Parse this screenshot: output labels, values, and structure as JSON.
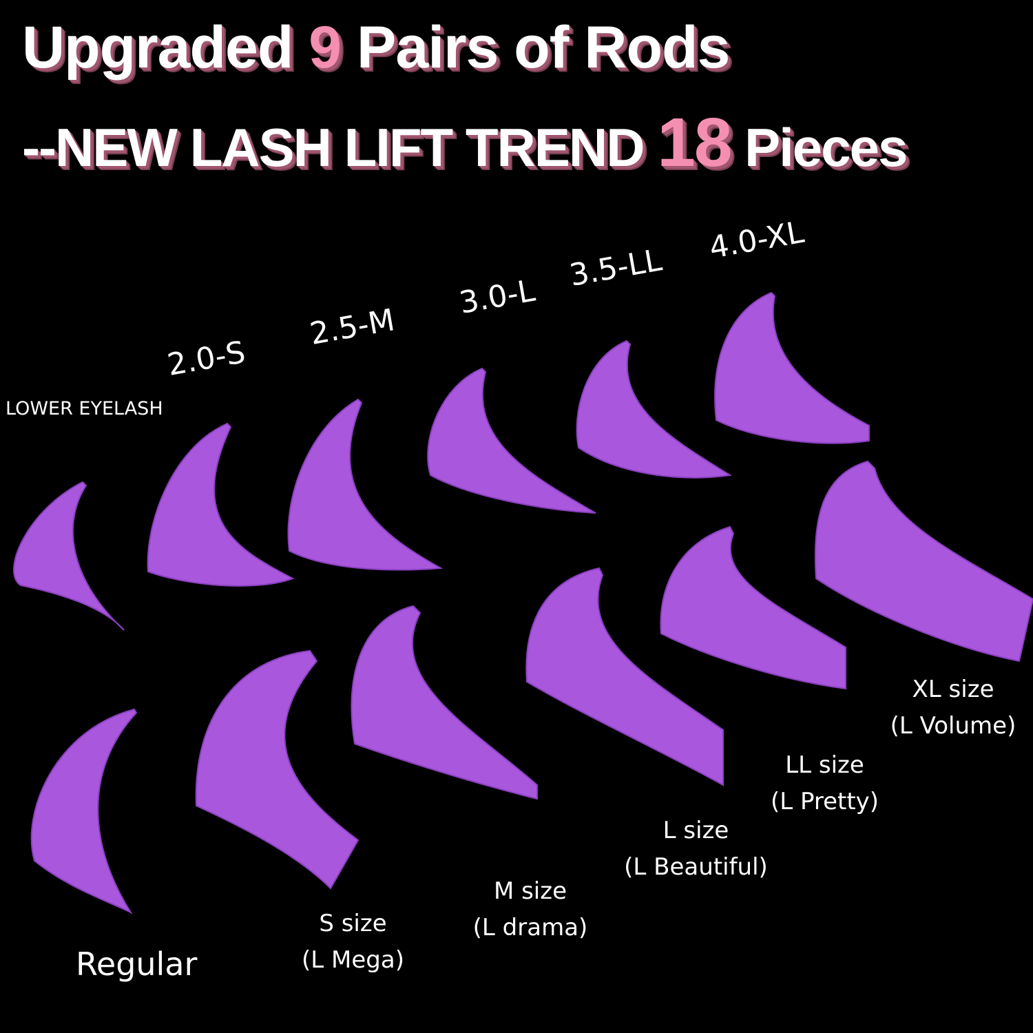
{
  "headline": {
    "line1_pre": "Upgraded ",
    "line1_num": "9",
    "line1_post": " Pairs of Rods",
    "line2_pre": "--NEW LASH LIFT TREND ",
    "line2_num": "18",
    "line2_post": " Pieces"
  },
  "top_labels": {
    "lower": "LOWER EYELASH",
    "s": "2.0-S",
    "m": "2.5-M",
    "l": "3.0-L",
    "ll": "3.5-LL",
    "xl": "4.0-XL"
  },
  "bottom_labels": [
    {
      "size": "Regular",
      "name": ""
    },
    {
      "size": "S size",
      "name": "(L Mega)"
    },
    {
      "size": "M size",
      "name": "(L drama)"
    },
    {
      "size": "L size",
      "name": "(L Beautiful)"
    },
    {
      "size": "LL size",
      "name": "(L Pretty)"
    },
    {
      "size": "XL size",
      "name": "(L Volume)"
    }
  ],
  "colors": {
    "background": "#000000",
    "accent_pink": "#f48fb1",
    "shadow": "#a0566e",
    "rod_purple": "#a957dd"
  }
}
